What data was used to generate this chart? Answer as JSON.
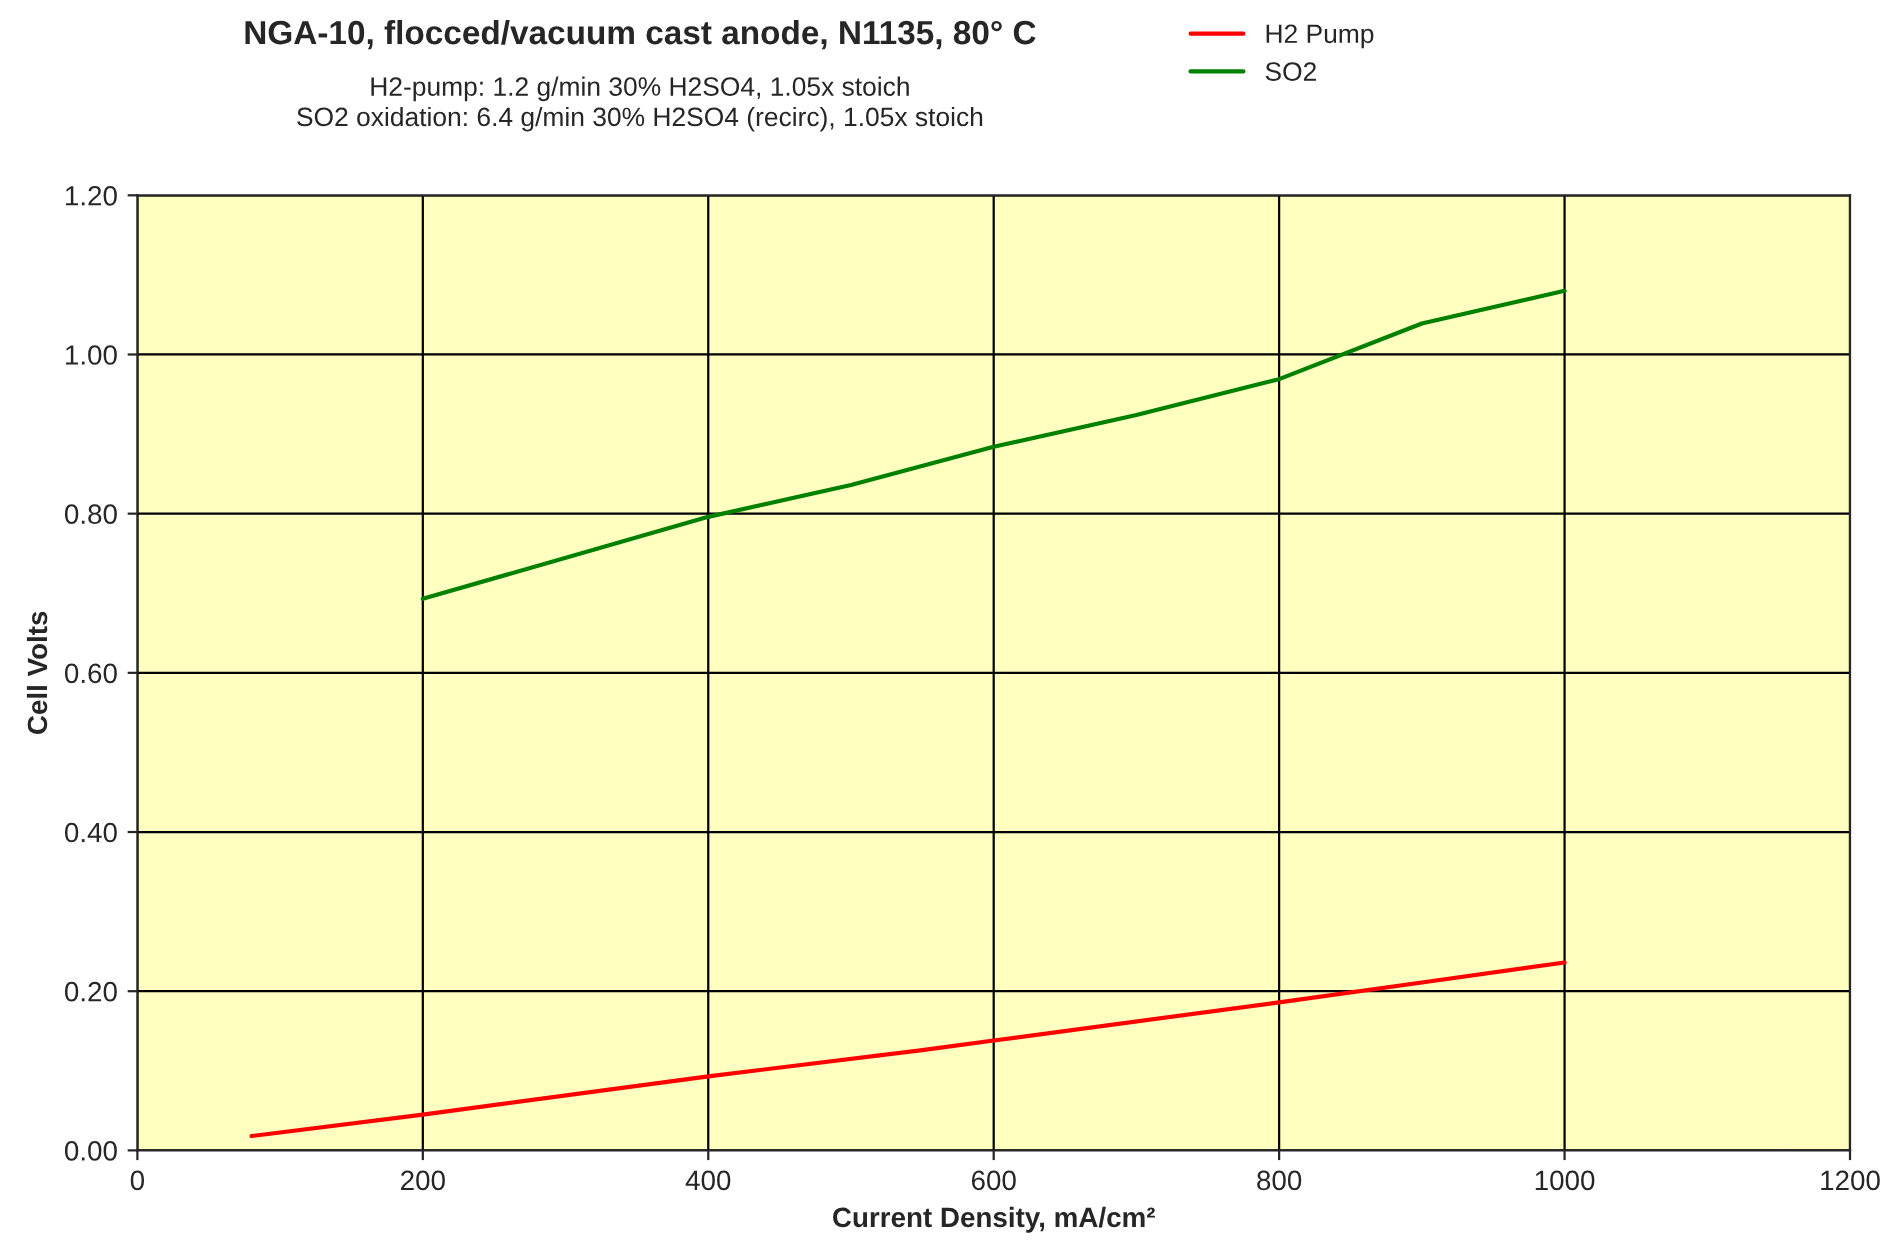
{
  "chart_data": {
    "type": "line",
    "title": "NGA-10, flocced/vacuum cast anode, N1135, 80° C",
    "subtitle": "H2-pump: 1.2 g/min 30% H2SO4, 1.05x stoich\nSO2 oxidation: 6.4 g/min 30% H2SO4 (recirc), 1.05x stoich",
    "xlabel": "Current Density, mA/cm²",
    "ylabel": "Cell Volts",
    "series": [
      {
        "name": "H2 Pump",
        "color": "#ff0000",
        "x": [
          80,
          200,
          400,
          550,
          600,
          800,
          900,
          1000
        ],
        "values": [
          0.018,
          0.045,
          0.093,
          0.126,
          0.138,
          0.186,
          0.211,
          0.236
        ]
      },
      {
        "name": "SO2",
        "color": "#008000",
        "x": [
          200,
          400,
          500,
          600,
          700,
          800,
          900,
          1000
        ],
        "values": [
          0.693,
          0.796,
          0.836,
          0.884,
          0.924,
          0.969,
          1.039,
          1.08
        ]
      }
    ],
    "xlim": [
      0,
      1200
    ],
    "xticks": [
      0,
      200,
      400,
      600,
      800,
      1000,
      1200
    ],
    "ylim": [
      0,
      1.2
    ],
    "yticks": [
      {
        "value": 0,
        "label": "0.00"
      },
      {
        "value": 0.2,
        "label": "0.20"
      },
      {
        "value": 0.4,
        "label": "0.40"
      },
      {
        "value": 0.6,
        "label": "0.60"
      },
      {
        "value": 0.8,
        "label": "0.80"
      },
      {
        "value": 1.0,
        "label": "1.00"
      },
      {
        "value": 1.2,
        "label": "1.20"
      }
    ],
    "grid": true,
    "legend": "top right",
    "marker": "none",
    "line_style": "solid"
  }
}
